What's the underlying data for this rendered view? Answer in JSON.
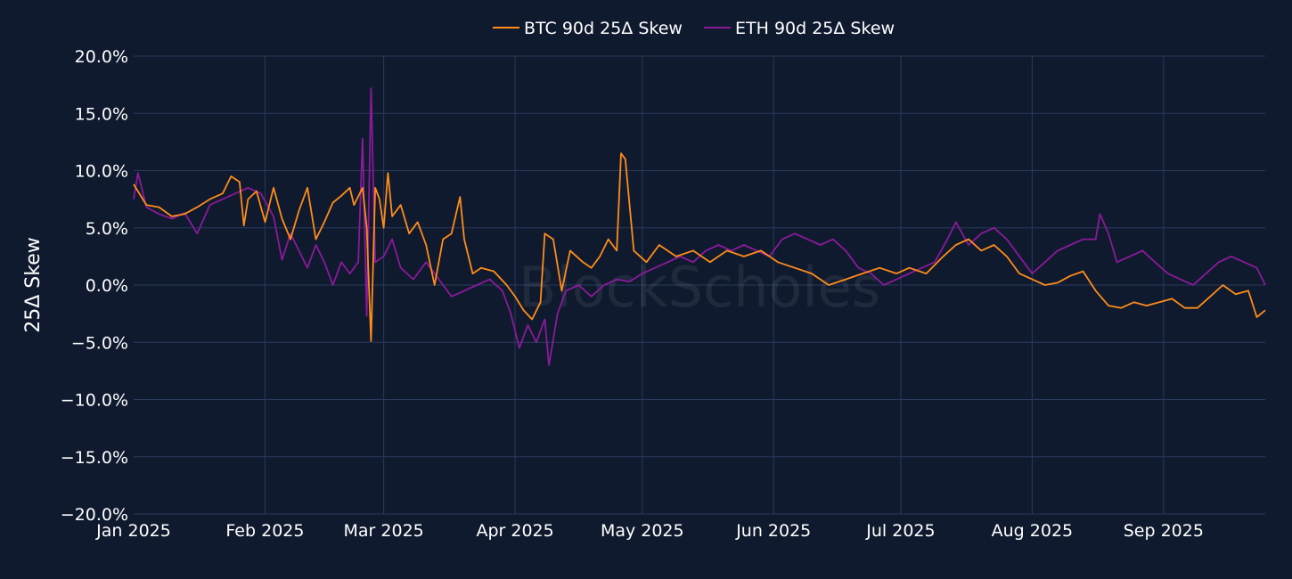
{
  "chart_data": {
    "type": "line",
    "title": "",
    "xlabel": "",
    "ylabel": "25Δ Skew",
    "watermark": "BlockScholes",
    "xlim": [
      "2025-01-01",
      "2025-09-25"
    ],
    "ylim": [
      -0.2,
      0.2
    ],
    "x_ticks": [
      {
        "date": "2025-01-01",
        "label": "Jan 2025"
      },
      {
        "date": "2025-02-01",
        "label": "Feb 2025"
      },
      {
        "date": "2025-03-01",
        "label": "Mar 2025"
      },
      {
        "date": "2025-04-01",
        "label": "Apr 2025"
      },
      {
        "date": "2025-05-01",
        "label": "May 2025"
      },
      {
        "date": "2025-06-01",
        "label": "Jun 2025"
      },
      {
        "date": "2025-07-01",
        "label": "Jul 2025"
      },
      {
        "date": "2025-08-01",
        "label": "Aug 2025"
      },
      {
        "date": "2025-09-01",
        "label": "Sep 2025"
      }
    ],
    "y_ticks": [
      {
        "value": 0.2,
        "label": "20.0%"
      },
      {
        "value": 0.15,
        "label": "15.0%"
      },
      {
        "value": 0.1,
        "label": "10.0%"
      },
      {
        "value": 0.05,
        "label": "5.0%"
      },
      {
        "value": 0.0,
        "label": "0.0%"
      },
      {
        "value": -0.05,
        "label": "−5.0%"
      },
      {
        "value": -0.1,
        "label": "−10.0%"
      },
      {
        "value": -0.15,
        "label": "−15.0%"
      },
      {
        "value": -0.2,
        "label": "−20.0%"
      }
    ],
    "grid": true,
    "legend_position": "top-center",
    "series": [
      {
        "name": "BTC 90d 25Δ Skew",
        "color": "#ff8c1a",
        "points": [
          [
            "2025-01-01",
            0.088
          ],
          [
            "2025-01-04",
            0.07
          ],
          [
            "2025-01-07",
            0.068
          ],
          [
            "2025-01-10",
            0.06
          ],
          [
            "2025-01-13",
            0.062
          ],
          [
            "2025-01-16",
            0.068
          ],
          [
            "2025-01-19",
            0.075
          ],
          [
            "2025-01-22",
            0.08
          ],
          [
            "2025-01-24",
            0.095
          ],
          [
            "2025-01-26",
            0.09
          ],
          [
            "2025-01-27",
            0.052
          ],
          [
            "2025-01-28",
            0.075
          ],
          [
            "2025-01-30",
            0.082
          ],
          [
            "2025-02-01",
            0.055
          ],
          [
            "2025-02-03",
            0.085
          ],
          [
            "2025-02-05",
            0.058
          ],
          [
            "2025-02-07",
            0.04
          ],
          [
            "2025-02-09",
            0.065
          ],
          [
            "2025-02-11",
            0.085
          ],
          [
            "2025-02-13",
            0.04
          ],
          [
            "2025-02-15",
            0.055
          ],
          [
            "2025-02-17",
            0.072
          ],
          [
            "2025-02-19",
            0.078
          ],
          [
            "2025-02-21",
            0.085
          ],
          [
            "2025-02-22",
            0.07
          ],
          [
            "2025-02-24",
            0.085
          ],
          [
            "2025-02-25",
            0.05
          ],
          [
            "2025-02-26",
            -0.049
          ],
          [
            "2025-02-27",
            0.085
          ],
          [
            "2025-02-28",
            0.075
          ],
          [
            "2025-03-01",
            0.05
          ],
          [
            "2025-03-02",
            0.098
          ],
          [
            "2025-03-03",
            0.06
          ],
          [
            "2025-03-05",
            0.07
          ],
          [
            "2025-03-07",
            0.045
          ],
          [
            "2025-03-09",
            0.055
          ],
          [
            "2025-03-11",
            0.035
          ],
          [
            "2025-03-13",
            0.0
          ],
          [
            "2025-03-15",
            0.04
          ],
          [
            "2025-03-17",
            0.045
          ],
          [
            "2025-03-19",
            0.077
          ],
          [
            "2025-03-20",
            0.04
          ],
          [
            "2025-03-22",
            0.01
          ],
          [
            "2025-03-24",
            0.015
          ],
          [
            "2025-03-27",
            0.012
          ],
          [
            "2025-03-30",
            0.0
          ],
          [
            "2025-04-01",
            -0.01
          ],
          [
            "2025-04-03",
            -0.022
          ],
          [
            "2025-04-05",
            -0.03
          ],
          [
            "2025-04-07",
            -0.015
          ],
          [
            "2025-04-08",
            0.045
          ],
          [
            "2025-04-10",
            0.04
          ],
          [
            "2025-04-12",
            -0.005
          ],
          [
            "2025-04-14",
            0.03
          ],
          [
            "2025-04-17",
            0.02
          ],
          [
            "2025-04-19",
            0.015
          ],
          [
            "2025-04-21",
            0.025
          ],
          [
            "2025-04-23",
            0.04
          ],
          [
            "2025-04-25",
            0.03
          ],
          [
            "2025-04-26",
            0.115
          ],
          [
            "2025-04-27",
            0.11
          ],
          [
            "2025-04-29",
            0.03
          ],
          [
            "2025-05-02",
            0.02
          ],
          [
            "2025-05-05",
            0.035
          ],
          [
            "2025-05-09",
            0.025
          ],
          [
            "2025-05-13",
            0.03
          ],
          [
            "2025-05-17",
            0.02
          ],
          [
            "2025-05-21",
            0.03
          ],
          [
            "2025-05-25",
            0.025
          ],
          [
            "2025-05-29",
            0.03
          ],
          [
            "2025-06-02",
            0.02
          ],
          [
            "2025-06-06",
            0.015
          ],
          [
            "2025-06-10",
            0.01
          ],
          [
            "2025-06-14",
            0.0
          ],
          [
            "2025-06-18",
            0.005
          ],
          [
            "2025-06-22",
            0.01
          ],
          [
            "2025-06-26",
            0.015
          ],
          [
            "2025-06-30",
            0.01
          ],
          [
            "2025-07-03",
            0.015
          ],
          [
            "2025-07-07",
            0.01
          ],
          [
            "2025-07-11",
            0.025
          ],
          [
            "2025-07-14",
            0.035
          ],
          [
            "2025-07-17",
            0.04
          ],
          [
            "2025-07-20",
            0.03
          ],
          [
            "2025-07-23",
            0.035
          ],
          [
            "2025-07-26",
            0.025
          ],
          [
            "2025-07-29",
            0.01
          ],
          [
            "2025-08-01",
            0.005
          ],
          [
            "2025-08-04",
            0.0
          ],
          [
            "2025-08-07",
            0.002
          ],
          [
            "2025-08-10",
            0.008
          ],
          [
            "2025-08-13",
            0.012
          ],
          [
            "2025-08-16",
            -0.005
          ],
          [
            "2025-08-19",
            -0.018
          ],
          [
            "2025-08-22",
            -0.02
          ],
          [
            "2025-08-25",
            -0.015
          ],
          [
            "2025-08-28",
            -0.018
          ],
          [
            "2025-08-31",
            -0.015
          ],
          [
            "2025-09-03",
            -0.012
          ],
          [
            "2025-09-06",
            -0.02
          ],
          [
            "2025-09-09",
            -0.02
          ],
          [
            "2025-09-12",
            -0.01
          ],
          [
            "2025-09-15",
            0.0
          ],
          [
            "2025-09-18",
            -0.008
          ],
          [
            "2025-09-21",
            -0.005
          ],
          [
            "2025-09-23",
            -0.028
          ],
          [
            "2025-09-25",
            -0.022
          ]
        ]
      },
      {
        "name": "ETH 90d 25Δ Skew",
        "color": "#8a1a9a",
        "points": [
          [
            "2025-01-01",
            0.075
          ],
          [
            "2025-01-02",
            0.098
          ],
          [
            "2025-01-04",
            0.068
          ],
          [
            "2025-01-07",
            0.062
          ],
          [
            "2025-01-10",
            0.058
          ],
          [
            "2025-01-13",
            0.063
          ],
          [
            "2025-01-16",
            0.045
          ],
          [
            "2025-01-19",
            0.07
          ],
          [
            "2025-01-22",
            0.075
          ],
          [
            "2025-01-25",
            0.08
          ],
          [
            "2025-01-28",
            0.085
          ],
          [
            "2025-01-31",
            0.08
          ],
          [
            "2025-02-03",
            0.06
          ],
          [
            "2025-02-05",
            0.022
          ],
          [
            "2025-02-07",
            0.045
          ],
          [
            "2025-02-09",
            0.03
          ],
          [
            "2025-02-11",
            0.015
          ],
          [
            "2025-02-13",
            0.035
          ],
          [
            "2025-02-15",
            0.02
          ],
          [
            "2025-02-17",
            0.0
          ],
          [
            "2025-02-19",
            0.02
          ],
          [
            "2025-02-21",
            0.01
          ],
          [
            "2025-02-23",
            0.02
          ],
          [
            "2025-02-24",
            0.128
          ],
          [
            "2025-02-25",
            -0.027
          ],
          [
            "2025-02-26",
            0.172
          ],
          [
            "2025-02-27",
            0.02
          ],
          [
            "2025-03-01",
            0.025
          ],
          [
            "2025-03-03",
            0.04
          ],
          [
            "2025-03-05",
            0.015
          ],
          [
            "2025-03-08",
            0.005
          ],
          [
            "2025-03-11",
            0.02
          ],
          [
            "2025-03-14",
            0.005
          ],
          [
            "2025-03-17",
            -0.01
          ],
          [
            "2025-03-20",
            -0.005
          ],
          [
            "2025-03-23",
            0.0
          ],
          [
            "2025-03-26",
            0.005
          ],
          [
            "2025-03-29",
            -0.005
          ],
          [
            "2025-03-31",
            -0.025
          ],
          [
            "2025-04-02",
            -0.055
          ],
          [
            "2025-04-04",
            -0.035
          ],
          [
            "2025-04-06",
            -0.05
          ],
          [
            "2025-04-08",
            -0.03
          ],
          [
            "2025-04-09",
            -0.07
          ],
          [
            "2025-04-11",
            -0.025
          ],
          [
            "2025-04-13",
            -0.005
          ],
          [
            "2025-04-16",
            0.0
          ],
          [
            "2025-04-19",
            -0.01
          ],
          [
            "2025-04-22",
            0.0
          ],
          [
            "2025-04-25",
            0.005
          ],
          [
            "2025-04-28",
            0.003
          ],
          [
            "2025-05-01",
            0.01
          ],
          [
            "2025-05-04",
            0.015
          ],
          [
            "2025-05-07",
            0.02
          ],
          [
            "2025-05-10",
            0.025
          ],
          [
            "2025-05-13",
            0.02
          ],
          [
            "2025-05-16",
            0.03
          ],
          [
            "2025-05-19",
            0.035
          ],
          [
            "2025-05-22",
            0.03
          ],
          [
            "2025-05-25",
            0.035
          ],
          [
            "2025-05-28",
            0.03
          ],
          [
            "2025-05-31",
            0.025
          ],
          [
            "2025-06-03",
            0.04
          ],
          [
            "2025-06-06",
            0.045
          ],
          [
            "2025-06-09",
            0.04
          ],
          [
            "2025-06-12",
            0.035
          ],
          [
            "2025-06-15",
            0.04
          ],
          [
            "2025-06-18",
            0.03
          ],
          [
            "2025-06-21",
            0.015
          ],
          [
            "2025-06-24",
            0.01
          ],
          [
            "2025-06-27",
            0.0
          ],
          [
            "2025-06-30",
            0.005
          ],
          [
            "2025-07-03",
            0.01
          ],
          [
            "2025-07-06",
            0.015
          ],
          [
            "2025-07-09",
            0.02
          ],
          [
            "2025-07-12",
            0.04
          ],
          [
            "2025-07-14",
            0.055
          ],
          [
            "2025-07-17",
            0.035
          ],
          [
            "2025-07-20",
            0.045
          ],
          [
            "2025-07-23",
            0.05
          ],
          [
            "2025-07-26",
            0.04
          ],
          [
            "2025-07-29",
            0.025
          ],
          [
            "2025-08-01",
            0.01
          ],
          [
            "2025-08-04",
            0.02
          ],
          [
            "2025-08-07",
            0.03
          ],
          [
            "2025-08-10",
            0.035
          ],
          [
            "2025-08-13",
            0.04
          ],
          [
            "2025-08-16",
            0.04
          ],
          [
            "2025-08-17",
            0.062
          ],
          [
            "2025-08-19",
            0.045
          ],
          [
            "2025-08-21",
            0.02
          ],
          [
            "2025-08-24",
            0.025
          ],
          [
            "2025-08-27",
            0.03
          ],
          [
            "2025-08-30",
            0.02
          ],
          [
            "2025-09-02",
            0.01
          ],
          [
            "2025-09-05",
            0.005
          ],
          [
            "2025-09-08",
            0.0
          ],
          [
            "2025-09-11",
            0.01
          ],
          [
            "2025-09-14",
            0.02
          ],
          [
            "2025-09-17",
            0.025
          ],
          [
            "2025-09-20",
            0.02
          ],
          [
            "2025-09-23",
            0.015
          ],
          [
            "2025-09-25",
            0.0
          ]
        ]
      }
    ]
  }
}
